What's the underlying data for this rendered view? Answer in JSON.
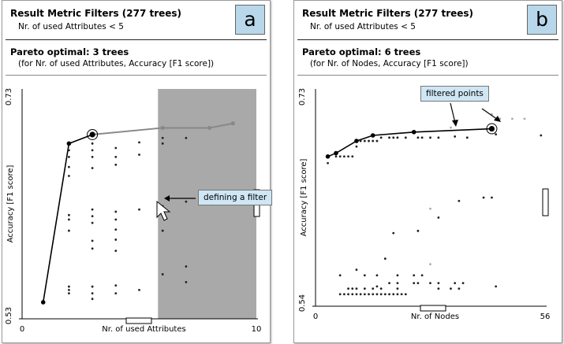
{
  "chart_data": [
    {
      "type": "scatter",
      "label": "a",
      "title": "Result Metric Filters (277 trees)",
      "subtitle": "Nr. of used Attributes < 5",
      "pareto_title": "Pareto optimal: 3 trees",
      "pareto_subtitle": "(for Nr. of used Attributes, Accuracy [F1 score])",
      "xlabel": "Nr. of used Attributes",
      "ylabel": "Accuracy [F1 score]",
      "xlim": [
        0,
        10
      ],
      "ylim": [
        0.53,
        0.73
      ],
      "x_tick_labels": [
        "0",
        "10"
      ],
      "y_tick_labels": [
        "0.53",
        "0.73"
      ],
      "filter": {
        "x_min": 5.8,
        "x_max": 10
      },
      "callout": "defining a filter",
      "pareto_line": [
        [
          0.9,
          0.542
        ],
        [
          2,
          0.684
        ],
        [
          3,
          0.692
        ]
      ],
      "pareto_line_filtered": [
        [
          3,
          0.692
        ],
        [
          6,
          0.698
        ],
        [
          8,
          0.698
        ],
        [
          9,
          0.702
        ]
      ],
      "pareto_points": [
        [
          0.9,
          0.542
        ],
        [
          2,
          0.684
        ]
      ],
      "highlighted_point": [
        3,
        0.692
      ],
      "filtered_pareto_points": [
        [
          6,
          0.698
        ],
        [
          8,
          0.698
        ],
        [
          9,
          0.702
        ]
      ],
      "points": [
        [
          2,
          0.678
        ],
        [
          2,
          0.672
        ],
        [
          2,
          0.663
        ],
        [
          2,
          0.655
        ],
        [
          2,
          0.62
        ],
        [
          2,
          0.616
        ],
        [
          2,
          0.606
        ],
        [
          2,
          0.55
        ],
        [
          2,
          0.553
        ],
        [
          2,
          0.556
        ],
        [
          3,
          0.684
        ],
        [
          3,
          0.678
        ],
        [
          3,
          0.672
        ],
        [
          3,
          0.662
        ],
        [
          3,
          0.625
        ],
        [
          3,
          0.619
        ],
        [
          3,
          0.613
        ],
        [
          3,
          0.597
        ],
        [
          3,
          0.59
        ],
        [
          3,
          0.556
        ],
        [
          3,
          0.55
        ],
        [
          3,
          0.545
        ],
        [
          4,
          0.68
        ],
        [
          4,
          0.672
        ],
        [
          4,
          0.665
        ],
        [
          4,
          0.623
        ],
        [
          4,
          0.616
        ],
        [
          4,
          0.607
        ],
        [
          4,
          0.598
        ],
        [
          4,
          0.588
        ],
        [
          4,
          0.557
        ],
        [
          4,
          0.55
        ],
        [
          5,
          0.685
        ],
        [
          5,
          0.674
        ],
        [
          5,
          0.625
        ],
        [
          5,
          0.553
        ],
        [
          6,
          0.689
        ],
        [
          6,
          0.684
        ],
        [
          6,
          0.628
        ],
        [
          6,
          0.606
        ],
        [
          6,
          0.567
        ],
        [
          7,
          0.689
        ],
        [
          7,
          0.56
        ],
        [
          7,
          0.574
        ],
        [
          7,
          0.632
        ]
      ]
    },
    {
      "type": "scatter",
      "label": "b",
      "title": "Result Metric Filters (277 trees)",
      "subtitle": "Nr. of used Attributes < 5",
      "pareto_title": "Pareto optimal: 6 trees",
      "pareto_subtitle": "(for Nr. of Nodes, Accuracy [F1 score])",
      "xlabel": "Nr. of Nodes",
      "ylabel": "Accuracy [F1 score]",
      "xlim": [
        0,
        56
      ],
      "ylim": [
        0.54,
        0.73
      ],
      "x_tick_labels": [
        "0",
        "56"
      ],
      "y_tick_labels": [
        "0.54",
        "0.73"
      ],
      "callout": "filtered points",
      "pareto_line": [
        [
          3,
          0.672
        ],
        [
          5,
          0.675
        ],
        [
          10,
          0.686
        ],
        [
          14,
          0.691
        ],
        [
          24,
          0.694
        ],
        [
          43,
          0.697
        ]
      ],
      "pareto_points": [
        [
          3,
          0.672
        ],
        [
          5,
          0.675
        ],
        [
          10,
          0.686
        ],
        [
          14,
          0.691
        ],
        [
          24,
          0.694
        ]
      ],
      "highlighted_point": [
        43,
        0.697
      ],
      "filtered_points": [
        [
          33,
          0.698
        ],
        [
          45,
          0.706
        ],
        [
          48,
          0.706
        ],
        [
          51,
          0.706
        ],
        [
          43,
          0.71
        ],
        [
          28,
          0.625
        ],
        [
          28,
          0.575
        ]
      ],
      "points": [
        [
          3,
          0.666
        ],
        [
          5,
          0.672
        ],
        [
          6,
          0.672
        ],
        [
          7,
          0.672
        ],
        [
          8,
          0.672
        ],
        [
          9,
          0.672
        ],
        [
          10,
          0.681
        ],
        [
          11,
          0.686
        ],
        [
          12,
          0.686
        ],
        [
          13,
          0.686
        ],
        [
          14,
          0.686
        ],
        [
          15,
          0.686
        ],
        [
          16,
          0.689
        ],
        [
          18,
          0.689
        ],
        [
          19,
          0.689
        ],
        [
          20,
          0.689
        ],
        [
          22,
          0.689
        ],
        [
          25,
          0.689
        ],
        [
          26,
          0.689
        ],
        [
          28,
          0.689
        ],
        [
          30,
          0.689
        ],
        [
          34,
          0.69
        ],
        [
          37,
          0.689
        ],
        [
          44,
          0.692
        ],
        [
          55,
          0.691
        ],
        [
          41,
          0.635
        ],
        [
          43,
          0.635
        ],
        [
          35,
          0.632
        ],
        [
          30,
          0.617
        ],
        [
          25,
          0.605
        ],
        [
          19,
          0.603
        ],
        [
          17,
          0.58
        ],
        [
          15,
          0.555
        ],
        [
          10,
          0.57
        ],
        [
          6,
          0.548
        ],
        [
          7,
          0.548
        ],
        [
          8,
          0.548
        ],
        [
          9,
          0.548
        ],
        [
          10,
          0.548
        ],
        [
          11,
          0.548
        ],
        [
          12,
          0.548
        ],
        [
          13,
          0.548
        ],
        [
          14,
          0.548
        ],
        [
          15,
          0.548
        ],
        [
          16,
          0.548
        ],
        [
          17,
          0.548
        ],
        [
          18,
          0.548
        ],
        [
          19,
          0.548
        ],
        [
          20,
          0.548
        ],
        [
          21,
          0.548
        ],
        [
          22,
          0.548
        ],
        [
          8,
          0.553
        ],
        [
          9,
          0.553
        ],
        [
          10,
          0.553
        ],
        [
          12,
          0.553
        ],
        [
          14,
          0.553
        ],
        [
          16,
          0.553
        ],
        [
          20,
          0.553
        ],
        [
          18,
          0.558
        ],
        [
          20,
          0.558
        ],
        [
          24,
          0.558
        ],
        [
          25,
          0.558
        ],
        [
          28,
          0.558
        ],
        [
          30,
          0.558
        ],
        [
          34,
          0.558
        ],
        [
          36,
          0.558
        ],
        [
          6,
          0.565
        ],
        [
          12,
          0.565
        ],
        [
          15,
          0.565
        ],
        [
          20,
          0.565
        ],
        [
          24,
          0.565
        ],
        [
          26,
          0.565
        ],
        [
          30,
          0.553
        ],
        [
          33,
          0.553
        ],
        [
          35,
          0.553
        ],
        [
          44,
          0.555
        ]
      ]
    }
  ]
}
